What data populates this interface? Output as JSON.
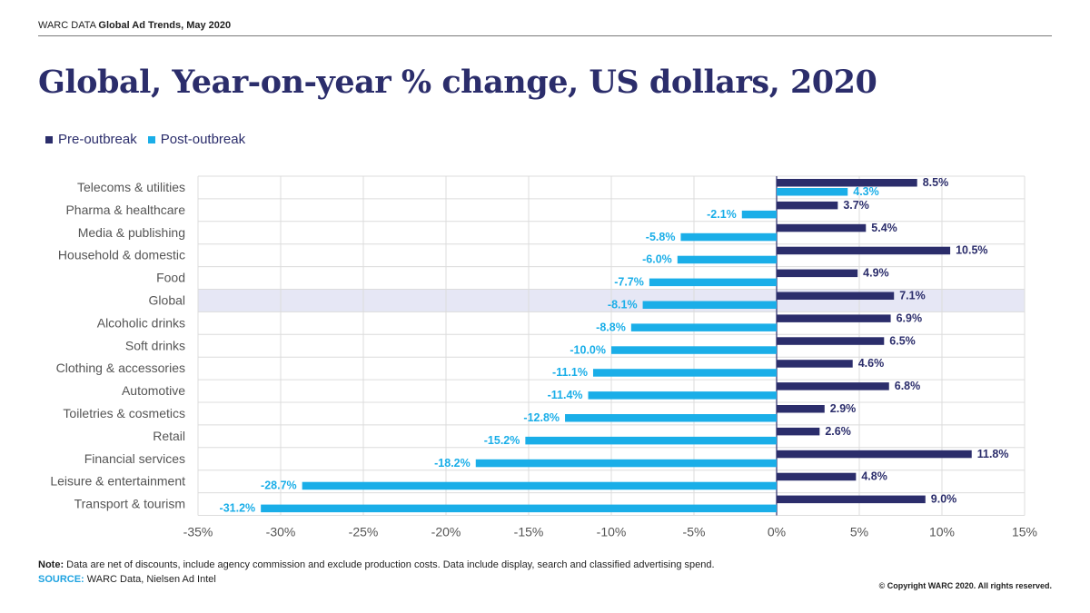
{
  "header": {
    "prefix": "WARC DATA",
    "title": "Global Ad Trends, May 2020"
  },
  "title": "Global, Year-on-year % change, US dollars, 2020",
  "note": {
    "label": "Note:",
    "text": "Data are net of discounts, include agency commission and exclude production costs. Data include display, search and classified advertising spend."
  },
  "source": {
    "label": "SOURCE:",
    "text": "WARC Data, Nielsen Ad Intel"
  },
  "copyright": "© Copyright WARC 2020. All rights reserved.",
  "colors": {
    "pre": "#2b2d6b",
    "post": "#1aaee8",
    "highlight": "#e6e7f5",
    "grid": "#dcdcdc"
  },
  "chart_data": {
    "type": "bar",
    "orientation": "horizontal",
    "categories": [
      "Telecoms & utilities",
      "Pharma & healthcare",
      "Media & publishing",
      "Household & domestic",
      "Food",
      "Global",
      "Alcoholic drinks",
      "Soft drinks",
      "Clothing & accessories",
      "Automotive",
      "Toiletries & cosmetics",
      "Retail",
      "Financial services",
      "Leisure & entertainment",
      "Transport & tourism"
    ],
    "series": [
      {
        "name": "Pre-outbreak",
        "values": [
          8.5,
          3.7,
          5.4,
          10.5,
          4.9,
          7.1,
          6.9,
          6.5,
          4.6,
          6.8,
          2.9,
          2.6,
          11.8,
          4.8,
          9.0
        ]
      },
      {
        "name": "Post-outbreak",
        "values": [
          4.3,
          -2.1,
          -5.8,
          -6.0,
          -7.7,
          -8.1,
          -8.8,
          -10.0,
          -11.1,
          -11.4,
          -12.8,
          -15.2,
          -18.2,
          -28.7,
          -31.2
        ]
      }
    ],
    "value_labels": {
      "Pre-outbreak": [
        "8.5%",
        "3.7%",
        "5.4%",
        "10.5%",
        "4.9%",
        "7.1%",
        "6.9%",
        "6.5%",
        "4.6%",
        "6.8%",
        "2.9%",
        "2.6%",
        "11.8%",
        "4.8%",
        "9.0%"
      ],
      "Post-outbreak": [
        "4.3%",
        "-2.1%",
        "-5.8%",
        "-6.0%",
        "-7.7%",
        "-8.1%",
        "-8.8%",
        "-10.0%",
        "-11.1%",
        "-11.4%",
        "-12.8%",
        "-15.2%",
        "-18.2%",
        "-28.7%",
        "-31.2%"
      ]
    },
    "highlighted_category": "Global",
    "xlim": [
      -35,
      15
    ],
    "xticks": [
      -35,
      -30,
      -25,
      -20,
      -15,
      -10,
      -5,
      0,
      5,
      10,
      15
    ],
    "xtick_labels": [
      "-35%",
      "-30%",
      "-25%",
      "-20%",
      "-15%",
      "-10%",
      "-5%",
      "0%",
      "5%",
      "10%",
      "15%"
    ],
    "grid": true,
    "legend_position": "top-left"
  }
}
